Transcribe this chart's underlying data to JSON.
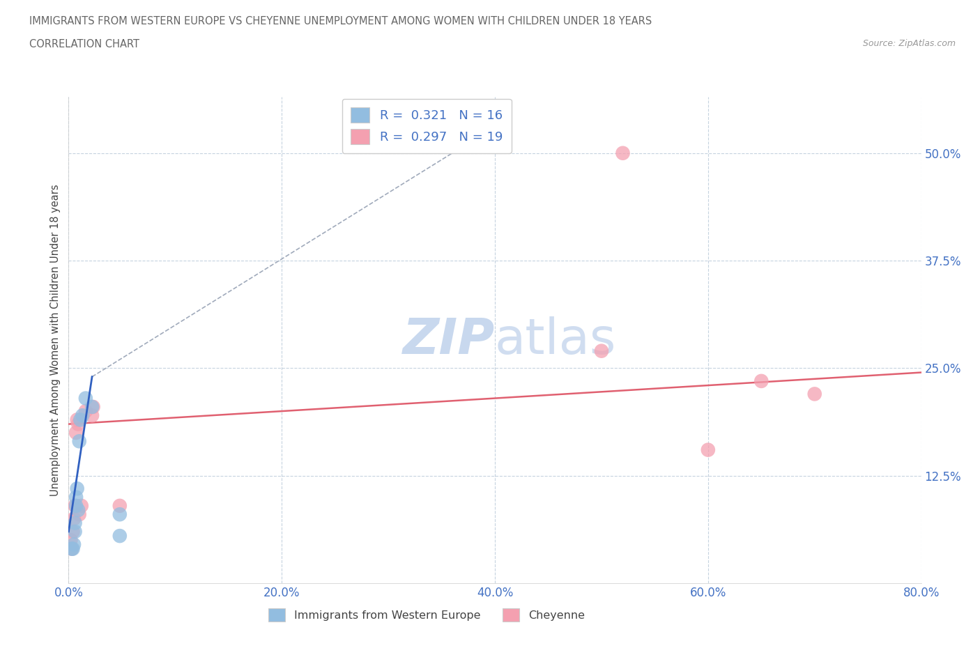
{
  "title": "IMMIGRANTS FROM WESTERN EUROPE VS CHEYENNE UNEMPLOYMENT AMONG WOMEN WITH CHILDREN UNDER 18 YEARS",
  "subtitle": "CORRELATION CHART",
  "source": "Source: ZipAtlas.com",
  "ylabel": "Unemployment Among Women with Children Under 18 years",
  "xlim": [
    0.0,
    0.8
  ],
  "ylim": [
    0.0,
    0.565
  ],
  "yticks": [
    0.125,
    0.25,
    0.375,
    0.5
  ],
  "ytick_labels": [
    "12.5%",
    "25.0%",
    "37.5%",
    "50.0%"
  ],
  "xticks": [
    0.0,
    0.2,
    0.4,
    0.6,
    0.8
  ],
  "xtick_labels": [
    "0.0%",
    "20.0%",
    "40.0%",
    "60.0%",
    "80.0%"
  ],
  "blue_R": 0.321,
  "blue_N": 16,
  "pink_R": 0.297,
  "pink_N": 19,
  "blue_color": "#92BDE0",
  "pink_color": "#F4A0B0",
  "pink_line_color": "#E06070",
  "blue_line_color": "#3060C0",
  "dashed_line_color": "#A0AABB",
  "watermark_color": "#C8D8EE",
  "blue_x": [
    0.003,
    0.004,
    0.005,
    0.006,
    0.006,
    0.007,
    0.007,
    0.008,
    0.009,
    0.01,
    0.011,
    0.013,
    0.016,
    0.022,
    0.048,
    0.048
  ],
  "blue_y": [
    0.04,
    0.04,
    0.045,
    0.06,
    0.07,
    0.09,
    0.1,
    0.11,
    0.085,
    0.165,
    0.19,
    0.195,
    0.215,
    0.205,
    0.055,
    0.08
  ],
  "pink_x": [
    0.002,
    0.003,
    0.004,
    0.005,
    0.006,
    0.007,
    0.008,
    0.009,
    0.01,
    0.012,
    0.016,
    0.022,
    0.023,
    0.048,
    0.5,
    0.52,
    0.6,
    0.65,
    0.7
  ],
  "pink_y": [
    0.05,
    0.04,
    0.06,
    0.075,
    0.09,
    0.175,
    0.19,
    0.185,
    0.08,
    0.09,
    0.2,
    0.195,
    0.205,
    0.09,
    0.27,
    0.5,
    0.155,
    0.235,
    0.22
  ],
  "blue_line_x": [
    0.0,
    0.022
  ],
  "blue_line_y": [
    0.06,
    0.24
  ],
  "pink_line_x": [
    0.0,
    0.8
  ],
  "pink_line_y": [
    0.185,
    0.245
  ]
}
